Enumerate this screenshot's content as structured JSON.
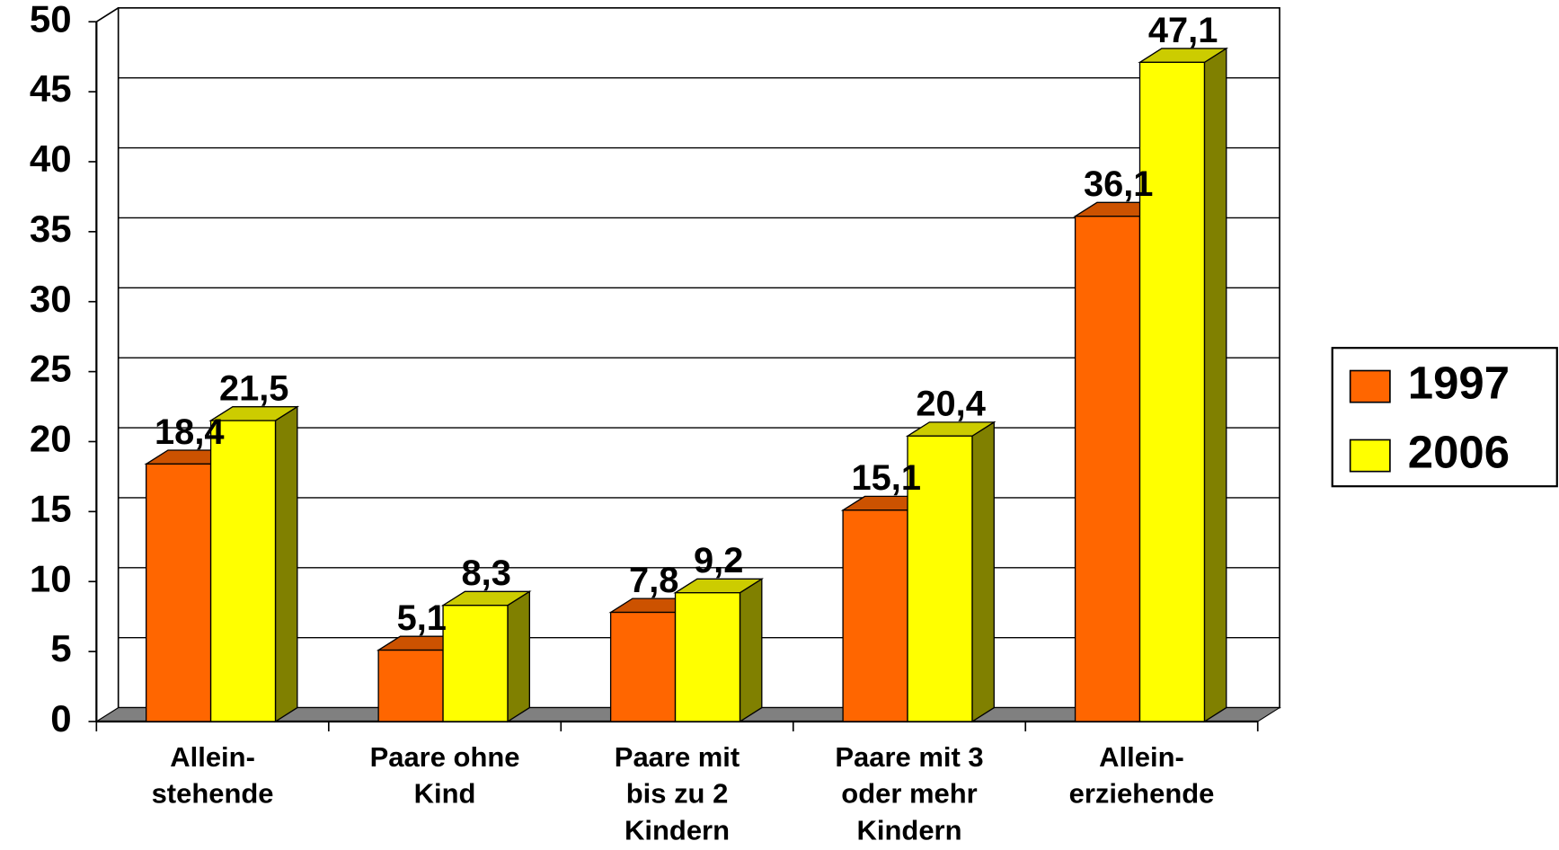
{
  "chart_data": {
    "type": "bar3d",
    "categories": [
      [
        "Allein-",
        "stehende"
      ],
      [
        "Paare ohne",
        "Kind"
      ],
      [
        "Paare mit",
        "bis zu 2",
        "Kindern"
      ],
      [
        "Paare mit 3",
        "oder mehr",
        "Kindern"
      ],
      [
        "Allein-",
        "erziehende"
      ]
    ],
    "series": [
      {
        "name": "1997",
        "color": "#ff6600",
        "values": [
          18.4,
          5.1,
          7.8,
          15.1,
          36.1
        ],
        "value_labels": [
          "18,4",
          "5,1",
          "7,8",
          "15,1",
          "36,1"
        ]
      },
      {
        "name": "2006",
        "color": "#ffff00",
        "values": [
          21.5,
          8.3,
          9.2,
          20.4,
          47.1
        ],
        "value_labels": [
          "21,5",
          "8,3",
          "9,2",
          "20,4",
          "47,1"
        ]
      }
    ],
    "ylim": [
      0,
      50
    ],
    "yticks": [
      0,
      5,
      10,
      15,
      20,
      25,
      30,
      35,
      40,
      45,
      50
    ],
    "grid": true,
    "legend": "right"
  }
}
